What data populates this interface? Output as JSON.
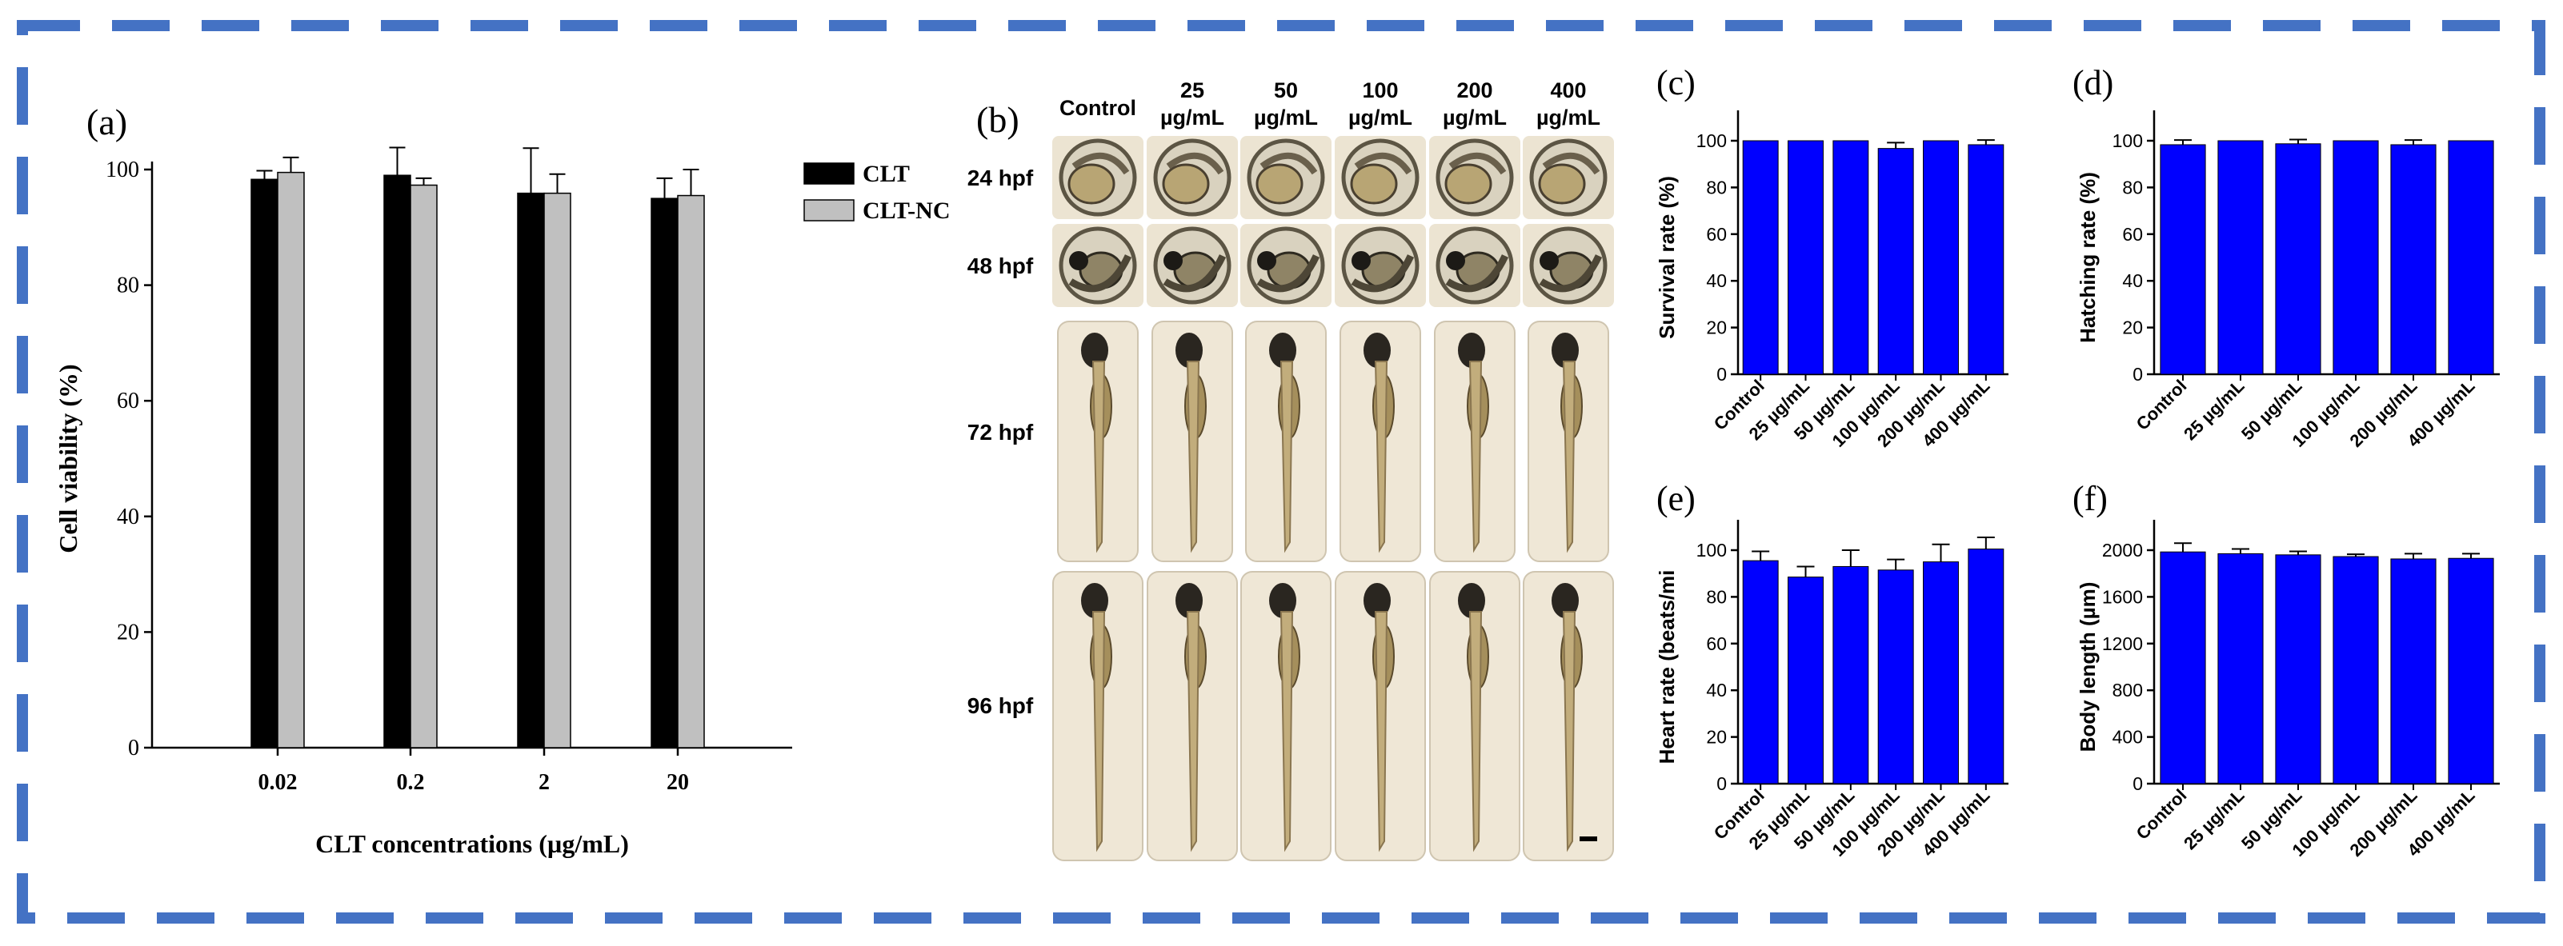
{
  "colors": {
    "frame": "#4472c4",
    "bar_blue": "#0000ff",
    "clt": "#000000",
    "clt_nc": "#c0c0c0"
  },
  "chart_data": [
    {
      "panel": "(a)",
      "type": "bar",
      "xlabel": "CLT concentrations (µg/mL)",
      "ylabel": "Cell viability (%)",
      "ylim": [
        0,
        100
      ],
      "yticks": [
        0,
        20,
        40,
        60,
        80,
        100
      ],
      "categories": [
        "0.02",
        "0.2",
        "2",
        "20"
      ],
      "legend_placement": "top-right",
      "series": [
        {
          "name": "CLT",
          "values": [
            98.3,
            99.0,
            95.9,
            95.0
          ],
          "errors": [
            1.5,
            4.8,
            7.8,
            3.5
          ]
        },
        {
          "name": "CLT-NC",
          "values": [
            99.5,
            97.3,
            95.9,
            95.5
          ],
          "errors": [
            2.6,
            1.2,
            3.3,
            4.5
          ]
        }
      ]
    },
    {
      "panel": "(c)",
      "type": "bar",
      "ylabel": "Survival rate (%)",
      "ylim": [
        0,
        100
      ],
      "yticks": [
        0,
        20,
        40,
        60,
        80,
        100
      ],
      "categories": [
        "Control",
        "25 µg/mL",
        "50 µg/mL",
        "100 µg/mL",
        "200 µg/mL",
        "400 µg/mL"
      ],
      "values": [
        100,
        100,
        100,
        96.7,
        100,
        98.3
      ],
      "errors": [
        0,
        0,
        0,
        2.5,
        0,
        2.0
      ]
    },
    {
      "panel": "(d)",
      "type": "bar",
      "ylabel": "Hatching rate (%)",
      "ylim": [
        0,
        100
      ],
      "yticks": [
        0,
        20,
        40,
        60,
        80,
        100
      ],
      "categories": [
        "Control",
        "25 µg/mL",
        "50 µg/mL",
        "100 µg/mL",
        "200 µg/mL",
        "400 µg/mL"
      ],
      "values": [
        98.3,
        100,
        98.7,
        100,
        98.3,
        100
      ],
      "errors": [
        2.0,
        0,
        1.8,
        0,
        2.0,
        0
      ]
    },
    {
      "panel": "(e)",
      "type": "bar",
      "ylabel": "Heart rate (beats/mi",
      "ylim": [
        0,
        100
      ],
      "yticks": [
        0,
        20,
        40,
        60,
        80,
        100
      ],
      "categories": [
        "Control",
        "25 µg/mL",
        "50 µg/mL",
        "100 µg/mL",
        "200 µg/mL",
        "400 µg/mL"
      ],
      "values": [
        95.5,
        88.5,
        93.0,
        91.5,
        95.0,
        100.5
      ],
      "errors": [
        4.0,
        4.5,
        7.0,
        4.5,
        7.5,
        5.0
      ]
    },
    {
      "panel": "(f)",
      "type": "bar",
      "ylabel": "Body length (µm)",
      "ylim": [
        0,
        2000
      ],
      "yticks": [
        0,
        400,
        800,
        1200,
        1600,
        2000
      ],
      "categories": [
        "Control",
        "25 µg/mL",
        "50 µg/mL",
        "100 µg/mL",
        "200 µg/mL",
        "400 µg/mL"
      ],
      "values": [
        1985,
        1970,
        1960,
        1945,
        1925,
        1930
      ],
      "errors": [
        75,
        40,
        30,
        20,
        45,
        40
      ]
    }
  ],
  "image_panel": {
    "label": "(b)",
    "columns": [
      {
        "line1": "Control",
        "line2": ""
      },
      {
        "line1": "25",
        "line2": "µg/mL"
      },
      {
        "line1": "50",
        "line2": "µg/mL"
      },
      {
        "line1": "100",
        "line2": "µg/mL"
      },
      {
        "line1": "200",
        "line2": "µg/mL"
      },
      {
        "line1": "400",
        "line2": "µg/mL"
      }
    ],
    "rows": [
      "24 hpf",
      "48 hpf",
      "72 hpf",
      "96 hpf"
    ]
  }
}
